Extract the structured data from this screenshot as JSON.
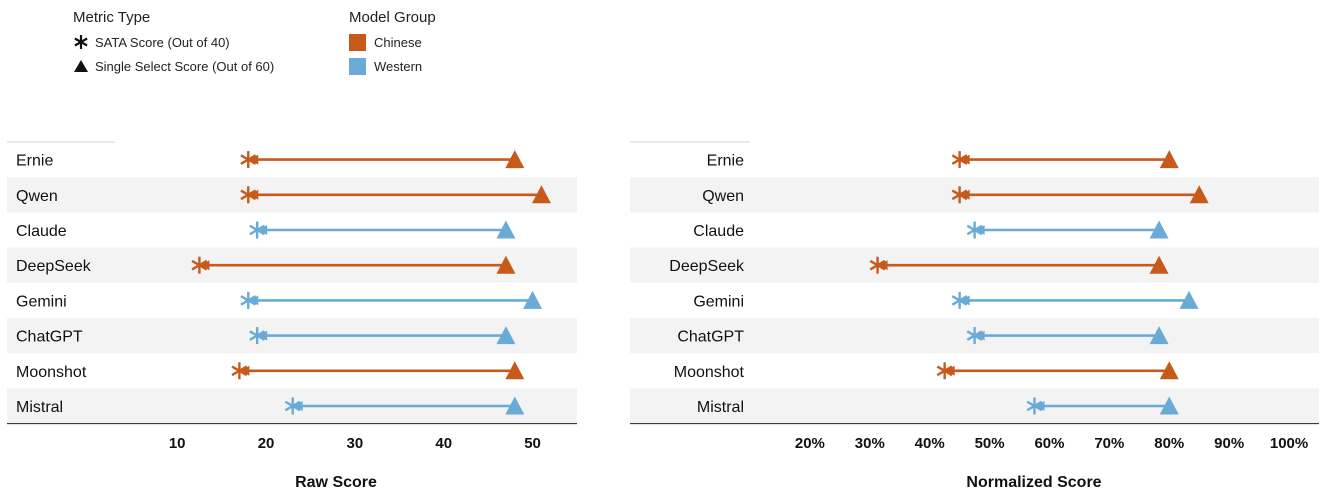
{
  "legend": {
    "metric_title": "Metric Type",
    "metric_items": [
      {
        "symbol": "asterisk",
        "label": "SATA Score (Out of 40)"
      },
      {
        "symbol": "triangle",
        "label": "Single Select Score (Out of 60)"
      }
    ],
    "group_title": "Model Group",
    "group_items": [
      {
        "label": "Chinese",
        "color": "#c75a1b"
      },
      {
        "label": "Western",
        "color": "#6aaad7"
      }
    ]
  },
  "colors": {
    "Chinese": "#c75a1b",
    "Western": "#6aaad7",
    "band": "#f3f3f3"
  },
  "chart_data": [
    {
      "type": "dumbbell",
      "xlabel": "Raw Score",
      "xlim": [
        3,
        55
      ],
      "ticks": [
        10,
        20,
        30,
        40,
        50
      ],
      "tick_labels": [
        "10",
        "20",
        "30",
        "40",
        "50"
      ],
      "categories": [
        "Ernie",
        "Qwen",
        "Claude",
        "DeepSeek",
        "Gemini",
        "ChatGPT",
        "Moonshot",
        "Mistral"
      ],
      "groups": [
        "Chinese",
        "Chinese",
        "Western",
        "Chinese",
        "Western",
        "Western",
        "Chinese",
        "Western"
      ],
      "series": [
        {
          "name": "SATA Score (Out of 40)",
          "marker": "asterisk",
          "values": [
            18,
            18,
            19,
            12.5,
            18,
            19,
            17,
            23
          ]
        },
        {
          "name": "Single Select Score (Out of 60)",
          "marker": "triangle",
          "values": [
            48,
            51,
            47,
            47,
            50,
            47,
            48,
            48
          ]
        }
      ]
    },
    {
      "type": "dumbbell",
      "xlabel": "Normalized Score",
      "xlim": [
        10,
        105
      ],
      "ticks": [
        20,
        30,
        40,
        50,
        60,
        70,
        80,
        90,
        100
      ],
      "tick_labels": [
        "20%",
        "30%",
        "40%",
        "50%",
        "60%",
        "70%",
        "80%",
        "90%",
        "100%"
      ],
      "categories": [
        "Ernie",
        "Qwen",
        "Claude",
        "DeepSeek",
        "Gemini",
        "ChatGPT",
        "Moonshot",
        "Mistral"
      ],
      "groups": [
        "Chinese",
        "Chinese",
        "Western",
        "Chinese",
        "Western",
        "Western",
        "Chinese",
        "Western"
      ],
      "series": [
        {
          "name": "SATA Score (Out of 40)",
          "marker": "asterisk",
          "values": [
            45,
            45,
            47.5,
            31.3,
            45,
            47.5,
            42.5,
            57.5
          ]
        },
        {
          "name": "Single Select Score (Out of 60)",
          "marker": "triangle",
          "values": [
            80,
            85,
            78.3,
            78.3,
            83.3,
            78.3,
            80,
            80
          ]
        }
      ]
    }
  ]
}
